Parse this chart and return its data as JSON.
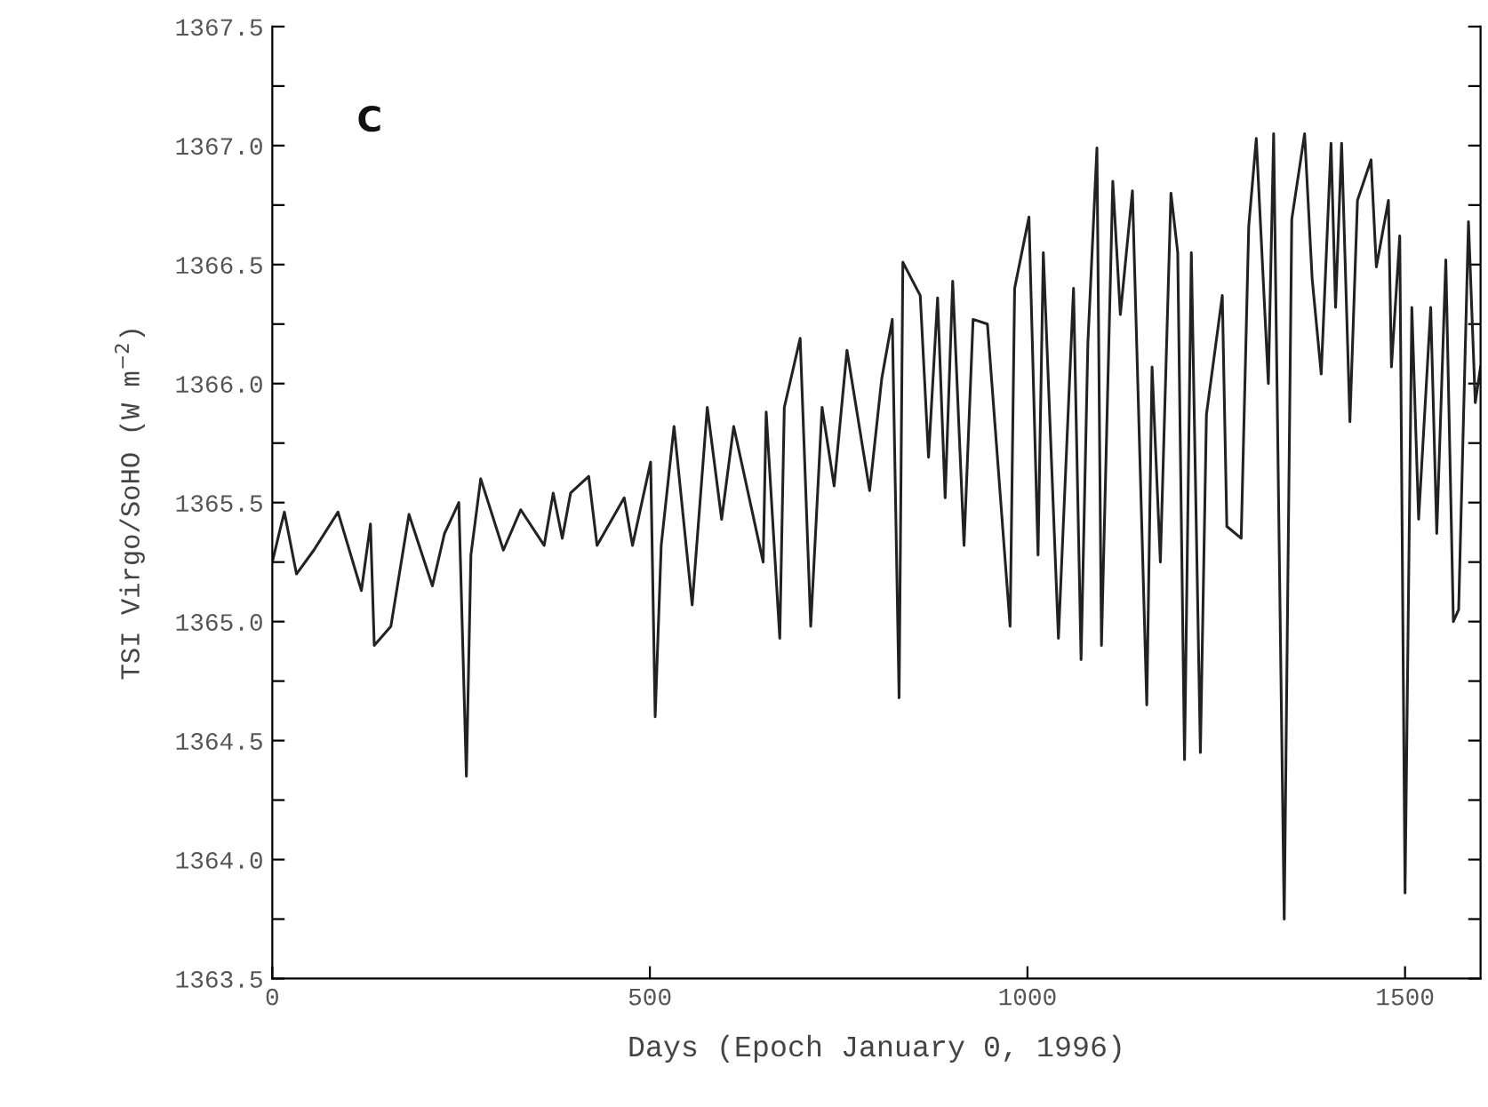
{
  "chart_data": {
    "type": "line",
    "xlabel": "Days (Epoch January 0, 1996)",
    "ylabel": "TSI Virgo/SoHO (W m$^{−2}$)",
    "annotations": [
      "C"
    ],
    "xlim": [
      0,
      1600
    ],
    "xticks": [
      0,
      500,
      1000,
      1500
    ],
    "ylim": [
      1363.5,
      1367.5
    ],
    "yticks": [
      1363.5,
      {
        "value": 1363.75,
        "label": null
      },
      "1364.0",
      {
        "value": 1364.25,
        "label": null
      },
      1364.5,
      {
        "value": 1364.75,
        "label": null
      },
      "1365.0",
      {
        "value": 1365.25,
        "label": null
      },
      1365.5,
      {
        "value": 1365.75,
        "label": null
      },
      "1366.0",
      {
        "value": 1366.25,
        "label": null
      },
      1366.5,
      {
        "value": 1366.75,
        "label": null
      },
      "1367.0",
      {
        "value": 1367.25,
        "label": null
      },
      1367.5
    ],
    "grid": false,
    "marker": "none",
    "line_style": "solid",
    "series": [
      {
        "color": "#222222",
        "x": [
          0,
          9,
          16,
          32,
          55,
          87,
          118,
          130,
          135,
          157,
          181,
          212,
          228,
          247,
          257,
          263,
          276,
          306,
          329,
          360,
          372,
          384,
          395,
          419,
          430,
          466,
          477,
          501,
          507,
          515,
          532,
          556,
          576,
          595,
          611,
          650,
          654,
          672,
          678,
          699,
          713,
          728,
          744,
          761,
          791,
          807,
          821,
          830,
          835,
          858,
          869,
          881,
          891,
          901,
          916,
          928,
          947,
          977,
          983,
          1002,
          1014,
          1021,
          1041,
          1061,
          1071,
          1080,
          1092,
          1098,
          1113,
          1123,
          1139,
          1158,
          1165,
          1176,
          1190,
          1199,
          1208,
          1217,
          1229,
          1237,
          1258,
          1264,
          1283,
          1293,
          1303,
          1319,
          1326,
          1340,
          1350,
          1367,
          1377,
          1389,
          1402,
          1408,
          1416,
          1427,
          1437,
          1455,
          1462,
          1478,
          1482,
          1493,
          1500,
          1509,
          1518,
          1534,
          1542,
          1554,
          1564,
          1571,
          1584,
          1593,
          1600
        ],
        "values": [
          1365.25,
          1365.37,
          1365.46,
          1365.2,
          1365.3,
          1365.46,
          1365.13,
          1365.41,
          1364.9,
          1364.98,
          1365.45,
          1365.15,
          1365.37,
          1365.5,
          1364.35,
          1365.28,
          1365.6,
          1365.3,
          1365.47,
          1365.32,
          1365.54,
          1365.35,
          1365.54,
          1365.61,
          1365.32,
          1365.52,
          1365.32,
          1365.67,
          1364.6,
          1365.32,
          1365.82,
          1365.07,
          1365.9,
          1365.43,
          1365.82,
          1365.25,
          1365.88,
          1364.93,
          1365.9,
          1366.19,
          1364.98,
          1365.9,
          1365.57,
          1366.14,
          1365.55,
          1366.02,
          1366.27,
          1364.68,
          1366.51,
          1366.37,
          1365.69,
          1366.36,
          1365.52,
          1366.43,
          1365.32,
          1366.27,
          1366.25,
          1364.98,
          1366.4,
          1366.7,
          1365.28,
          1366.55,
          1364.93,
          1366.4,
          1364.84,
          1366.17,
          1366.99,
          1364.9,
          1366.85,
          1366.29,
          1366.81,
          1364.65,
          1366.07,
          1365.25,
          1366.8,
          1366.55,
          1364.42,
          1366.55,
          1364.45,
          1365.87,
          1366.37,
          1365.4,
          1365.35,
          1366.66,
          1367.03,
          1366.0,
          1367.05,
          1363.75,
          1366.69,
          1367.05,
          1366.44,
          1366.04,
          1367.01,
          1366.32,
          1367.01,
          1365.84,
          1366.77,
          1366.94,
          1366.49,
          1366.77,
          1366.07,
          1366.62,
          1363.86,
          1366.32,
          1365.43,
          1366.32,
          1365.37,
          1366.52,
          1365.0,
          1365.05,
          1366.68,
          1365.92,
          1366.07
        ]
      }
    ]
  }
}
